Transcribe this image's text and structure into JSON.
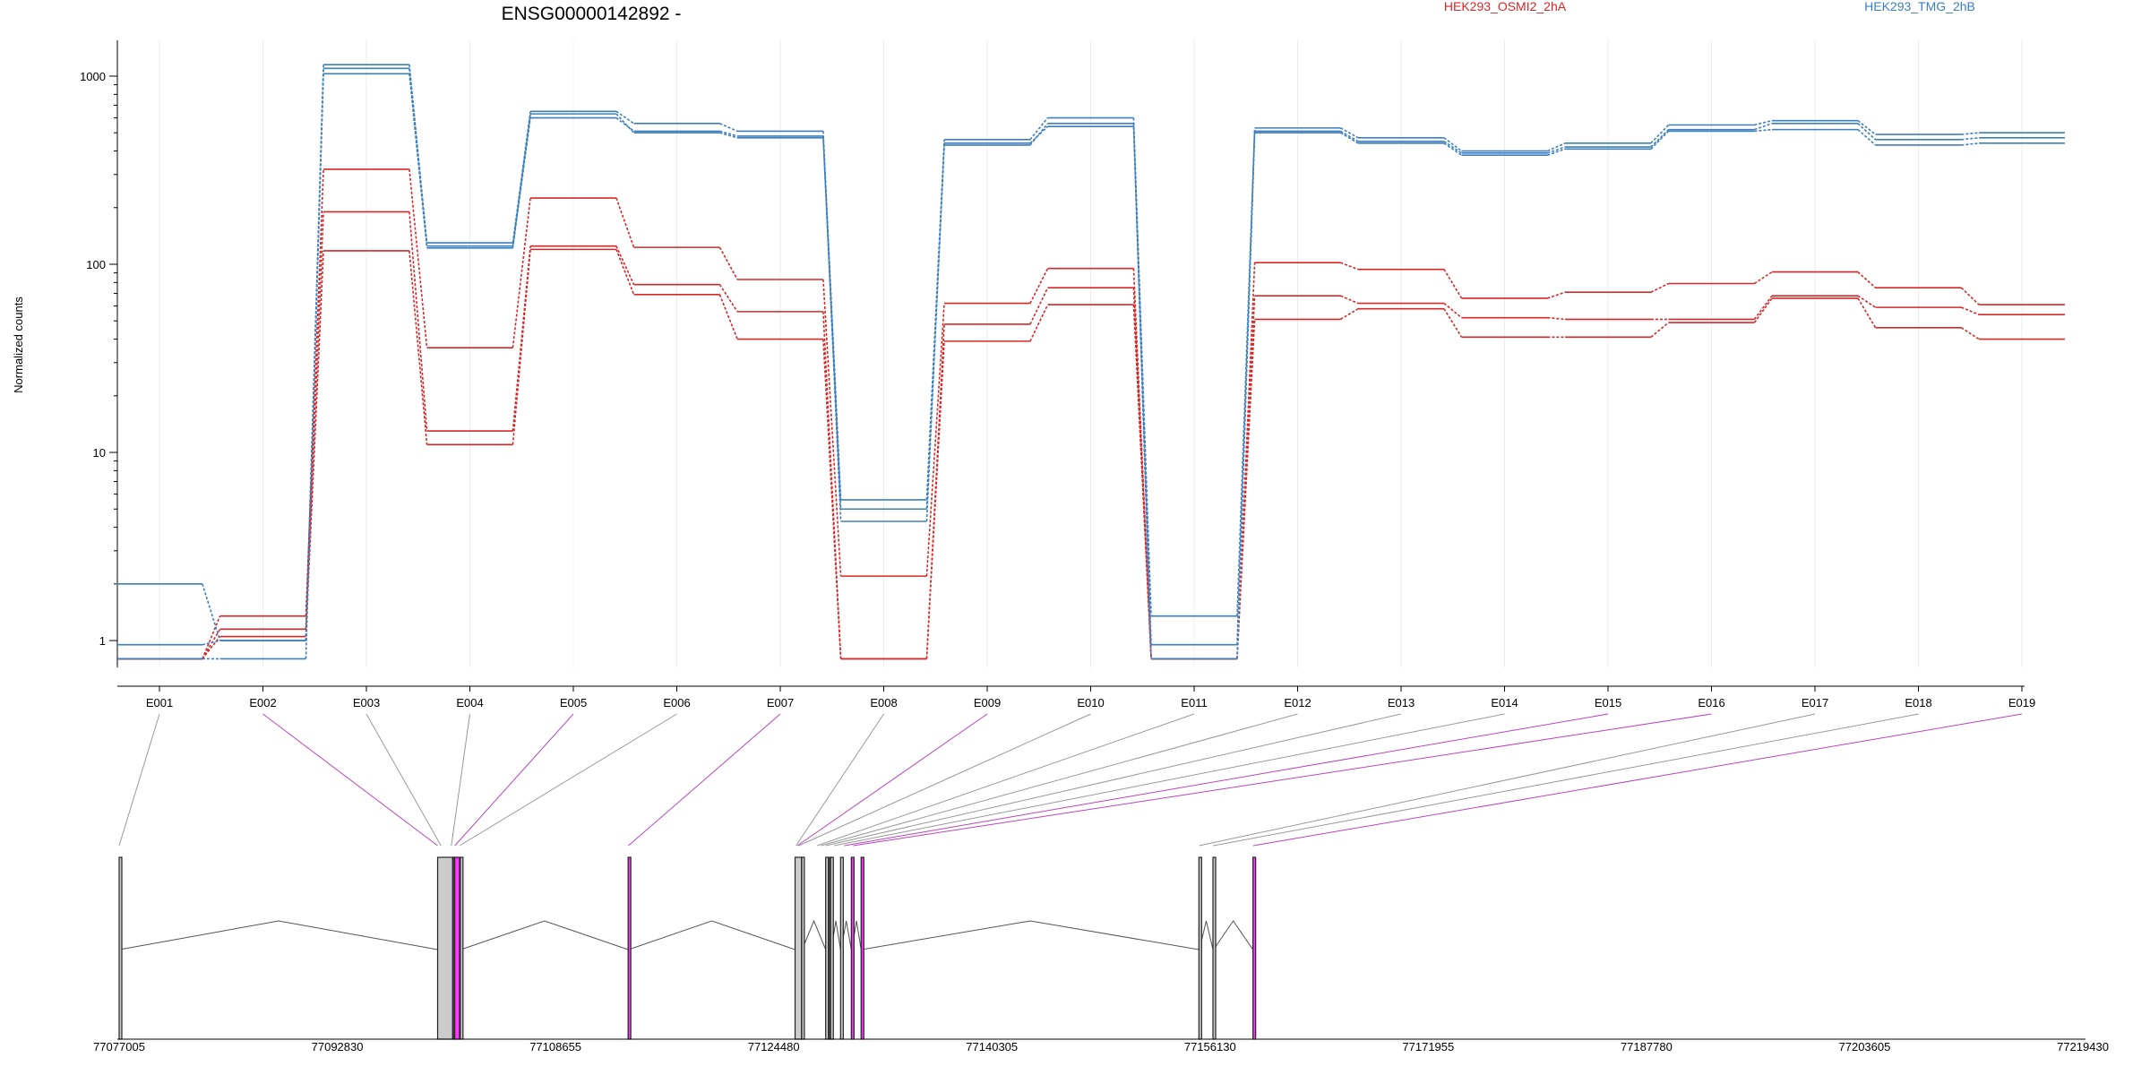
{
  "chart_data": {
    "type": "line",
    "title": "ENSG00000142892 -",
    "ylabel": "Normalized counts",
    "yscale": "log",
    "ylim": [
      0.72,
      1550
    ],
    "yticks": [
      1,
      10,
      100,
      1000
    ],
    "ytick_labels": [
      "1",
      "10",
      "100",
      "1000"
    ],
    "grid": "vertical-only",
    "categories": [
      "E001",
      "E002",
      "E003",
      "E004",
      "E005",
      "E006",
      "E007",
      "E008",
      "E009",
      "E010",
      "E011",
      "E012",
      "E013",
      "E014",
      "E015",
      "E016",
      "E017",
      "E018",
      "E019"
    ],
    "legend": [
      {
        "label": "HEK293_OSMI2_2hA",
        "color": "#d62728"
      },
      {
        "label": "HEK293_TMG_2hB",
        "color": "#3b7fbf"
      }
    ],
    "series": [
      {
        "group": "HEK293_OSMI2_2hA",
        "color": "#d62728",
        "values": [
          0.8,
          1.35,
          320,
          36,
          225,
          123,
          83,
          2.2,
          62,
          95,
          0.8,
          102,
          94,
          66,
          71,
          79,
          91,
          75,
          61
        ]
      },
      {
        "group": "HEK293_OSMI2_2hA",
        "color": "#d62728",
        "values": [
          0.8,
          1.15,
          190,
          13,
          125,
          78,
          56,
          0.8,
          48,
          75,
          0.8,
          68,
          62,
          52,
          51,
          51,
          68,
          59,
          54
        ]
      },
      {
        "group": "HEK293_OSMI2_2hA",
        "color": "#d62728",
        "values": [
          0.8,
          1.05,
          118,
          11,
          120,
          69,
          40,
          0.8,
          39,
          61,
          0.8,
          51,
          58,
          41,
          41,
          49,
          66,
          46,
          40
        ]
      },
      {
        "group": "HEK293_TMG_2hB",
        "color": "#3b7fbf",
        "values": [
          2.0,
          1.0,
          1150,
          130,
          650,
          560,
          510,
          5.6,
          460,
          600,
          1.35,
          530,
          470,
          400,
          440,
          550,
          580,
          490,
          500
        ]
      },
      {
        "group": "HEK293_TMG_2hB",
        "color": "#3b7fbf",
        "values": [
          0.95,
          1.0,
          1100,
          125,
          630,
          500,
          470,
          5.0,
          430,
          560,
          0.95,
          510,
          450,
          390,
          420,
          520,
          560,
          460,
          470
        ]
      },
      {
        "group": "HEK293_TMG_2hB",
        "color": "#3b7fbf",
        "values": [
          0.8,
          0.8,
          1030,
          122,
          600,
          510,
          480,
          4.3,
          440,
          540,
          0.8,
          500,
          440,
          380,
          410,
          510,
          520,
          430,
          440
        ]
      }
    ],
    "gene_model": {
      "genomic_ticks": [
        "77077005",
        "77092830",
        "77108655",
        "77124480",
        "77140305",
        "77156130",
        "77171955",
        "77187780",
        "77203605",
        "77219430"
      ],
      "exons": [
        {
          "start": 77077005,
          "end": 77077035,
          "color": "#cccccc"
        },
        {
          "start": 77100105,
          "end": 77101190,
          "color": "#cccccc"
        },
        {
          "start": 77101250,
          "end": 77101300,
          "color": "#cccccc"
        },
        {
          "start": 77101340,
          "end": 77101700,
          "color": "#ff33ff"
        },
        {
          "start": 77101750,
          "end": 77101790,
          "color": "#cccccc"
        },
        {
          "start": 77113920,
          "end": 77113960,
          "color": "#ff33ff"
        },
        {
          "start": 77126030,
          "end": 77126500,
          "color": "#cccccc"
        },
        {
          "start": 77126510,
          "end": 77126540,
          "color": "#cccccc"
        },
        {
          "start": 77128250,
          "end": 77128290,
          "color": "#cccccc"
        },
        {
          "start": 77128520,
          "end": 77128560,
          "color": "#cccccc"
        },
        {
          "start": 77128610,
          "end": 77128650,
          "color": "#cccccc"
        },
        {
          "start": 77129330,
          "end": 77129370,
          "color": "#cccccc"
        },
        {
          "start": 77130110,
          "end": 77130150,
          "color": "#ff33ff"
        },
        {
          "start": 77130820,
          "end": 77130860,
          "color": "#ff33ff"
        },
        {
          "start": 77155320,
          "end": 77155360,
          "color": "#cccccc"
        },
        {
          "start": 77156340,
          "end": 77156380,
          "color": "#cccccc"
        },
        {
          "start": 77159240,
          "end": 77159280,
          "color": "#ff33ff"
        }
      ],
      "exon_links": [
        {
          "exon": "E001",
          "pos": 77077005,
          "color": "#999999"
        },
        {
          "exon": "E002",
          "pos": 77100105,
          "color": "#bb44bb"
        },
        {
          "exon": "E003",
          "pos": 77100350,
          "color": "#999999"
        },
        {
          "exon": "E004",
          "pos": 77101100,
          "color": "#999999"
        },
        {
          "exon": "E005",
          "pos": 77101350,
          "color": "#bb44bb"
        },
        {
          "exon": "E006",
          "pos": 77101700,
          "color": "#999999"
        },
        {
          "exon": "E007",
          "pos": 77113940,
          "color": "#bb44bb"
        },
        {
          "exon": "E008",
          "pos": 77126100,
          "color": "#999999"
        },
        {
          "exon": "E009",
          "pos": 77126200,
          "color": "#bb44bb"
        },
        {
          "exon": "E010",
          "pos": 77126300,
          "color": "#999999"
        },
        {
          "exon": "E011",
          "pos": 77127630,
          "color": "#999999"
        },
        {
          "exon": "E012",
          "pos": 77127900,
          "color": "#999999"
        },
        {
          "exon": "E013",
          "pos": 77128250,
          "color": "#999999"
        },
        {
          "exon": "E014",
          "pos": 77128850,
          "color": "#999999"
        },
        {
          "exon": "E015",
          "pos": 77129600,
          "color": "#bb44bb"
        },
        {
          "exon": "E016",
          "pos": 77130250,
          "color": "#bb44bb"
        },
        {
          "exon": "E017",
          "pos": 77155340,
          "color": "#999999"
        },
        {
          "exon": "E018",
          "pos": 77156360,
          "color": "#999999"
        },
        {
          "exon": "E019",
          "pos": 77159260,
          "color": "#bb44bb"
        }
      ]
    }
  }
}
